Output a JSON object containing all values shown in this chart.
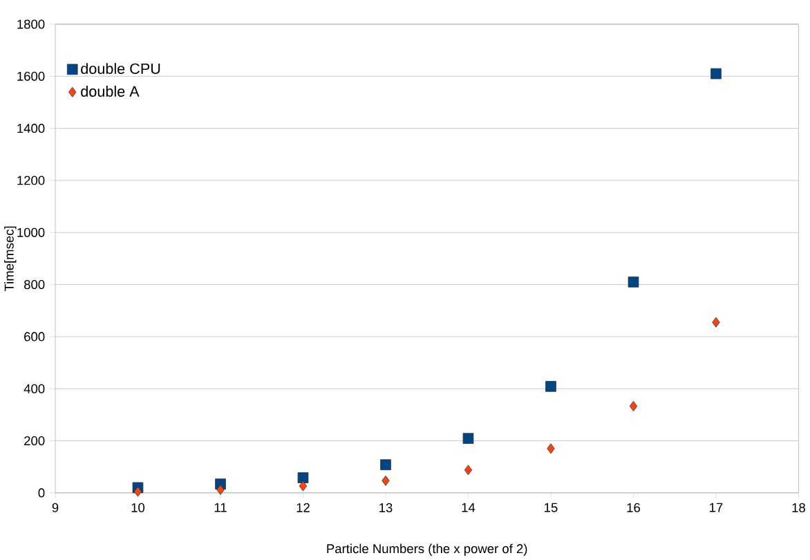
{
  "chart_data": {
    "type": "scatter",
    "xlabel": "Particle Numbers (the x power of 2)",
    "ylabel": "Time[msec]",
    "x": [
      10,
      11,
      12,
      13,
      14,
      15,
      16,
      17
    ],
    "series": [
      {
        "name": "double CPU",
        "color": "#004586",
        "marker": "square",
        "values": [
          20,
          34,
          58,
          108,
          209,
          409,
          810,
          1610
        ]
      },
      {
        "name": "double A",
        "color": "#ff420e",
        "marker": "diamond",
        "values": [
          5,
          12,
          26,
          47,
          88,
          170,
          333,
          655
        ]
      }
    ],
    "xlim": [
      9,
      18
    ],
    "xticks": [
      9,
      10,
      11,
      12,
      13,
      14,
      15,
      16,
      17,
      18
    ],
    "ylim": [
      0,
      1800
    ],
    "yticks": [
      0,
      200,
      400,
      600,
      800,
      1000,
      1200,
      1400,
      1600,
      1800
    ],
    "grid": "y",
    "legend": "top left"
  }
}
